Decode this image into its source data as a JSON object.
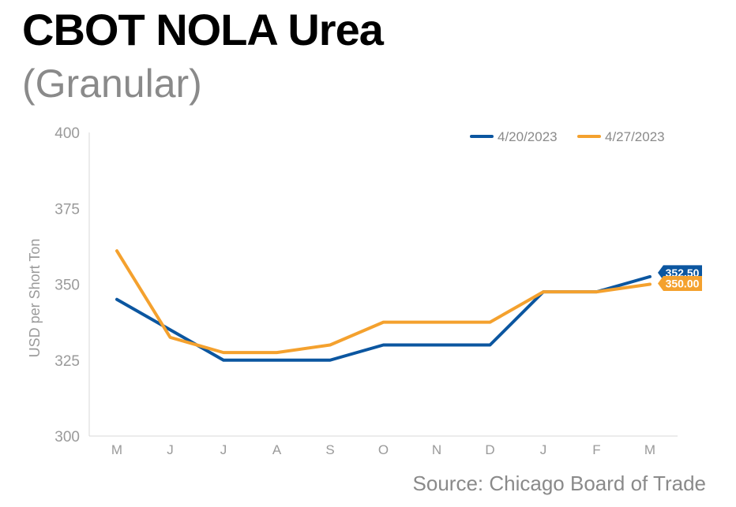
{
  "header": {
    "title": "CBOT NOLA Urea",
    "subtitle": "(Granular)"
  },
  "footer": {
    "source": "Source: Chicago Board of Trade"
  },
  "chart_data": {
    "type": "line",
    "title": "CBOT NOLA Urea",
    "subtitle": "(Granular)",
    "xlabel": "",
    "ylabel": "USD per Short Ton",
    "categories": [
      "M",
      "J",
      "J",
      "A",
      "S",
      "O",
      "N",
      "D",
      "J",
      "F",
      "M"
    ],
    "ylim": [
      300,
      400
    ],
    "yticks": [
      300,
      325,
      350,
      375,
      400
    ],
    "grid": false,
    "legend_position": "top-right",
    "series": [
      {
        "name": "4/20/2023",
        "color": "#0b56a0",
        "values": [
          345,
          335,
          325,
          325,
          325,
          330,
          330,
          330,
          347.5,
          347.5,
          352.5
        ],
        "end_label": "352.50"
      },
      {
        "name": "4/27/2023",
        "color": "#f4a12e",
        "values": [
          361,
          332.5,
          327.5,
          327.5,
          330,
          337.5,
          337.5,
          337.5,
          347.5,
          347.5,
          350
        ],
        "end_label": "350.00"
      }
    ]
  }
}
